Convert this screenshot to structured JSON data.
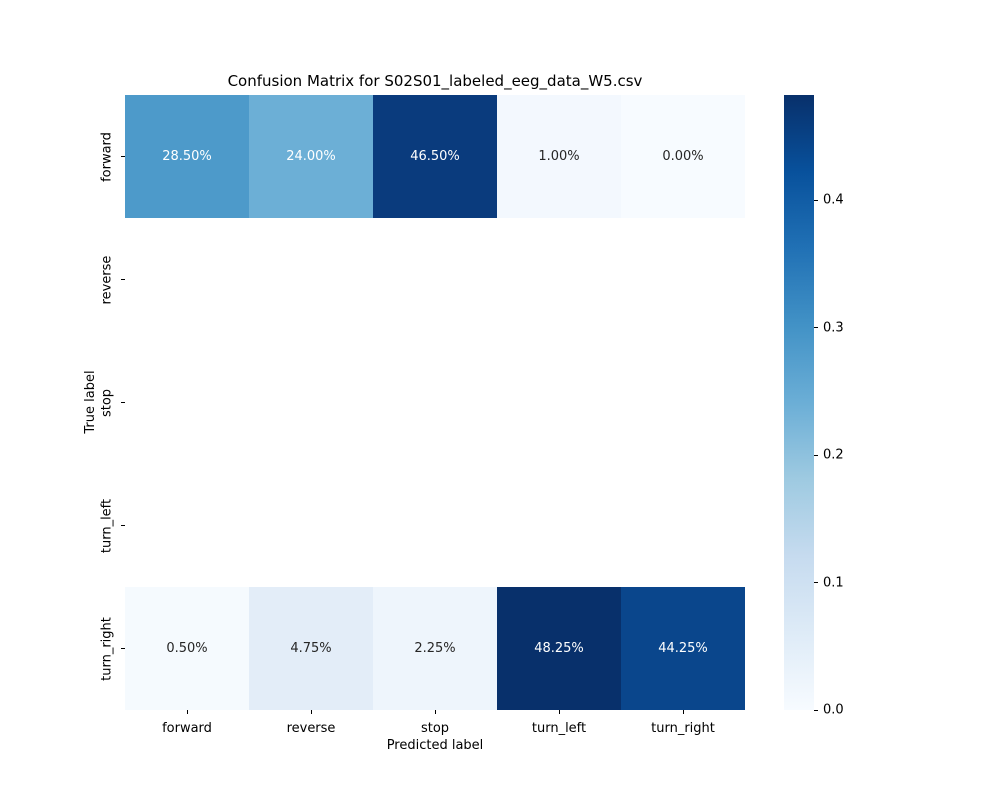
{
  "chart_data": {
    "type": "heatmap",
    "title": "Confusion Matrix for S02S01_labeled_eeg_data_W5.csv",
    "xlabel": "Predicted label",
    "ylabel": "True label",
    "x_categories": [
      "forward",
      "reverse",
      "stop",
      "turn_left",
      "turn_right"
    ],
    "y_categories": [
      "forward",
      "reverse",
      "stop",
      "turn_left",
      "turn_right"
    ],
    "values_fraction": [
      [
        0.285,
        0.24,
        0.465,
        0.01,
        0.0
      ],
      [
        null,
        null,
        null,
        null,
        null
      ],
      [
        null,
        null,
        null,
        null,
        null
      ],
      [
        null,
        null,
        null,
        null,
        null
      ],
      [
        0.005,
        0.0475,
        0.0225,
        0.4825,
        0.4425
      ]
    ],
    "rows": [
      {
        "label": "forward",
        "cells": [
          {
            "text": "28.50%",
            "bg": "#4d9aca",
            "fg": "#ffffff"
          },
          {
            "text": "24.00%",
            "bg": "#6cafd6",
            "fg": "#ffffff"
          },
          {
            "text": "46.50%",
            "bg": "#0a3b7d",
            "fg": "#ffffff"
          },
          {
            "text": "1.00%",
            "bg": "#f3f8fe",
            "fg": "#262626"
          },
          {
            "text": "0.00%",
            "bg": "#f7fbff",
            "fg": "#262626"
          }
        ]
      },
      {
        "label": "reverse",
        "cells": [
          null,
          null,
          null,
          null,
          null
        ]
      },
      {
        "label": "stop",
        "cells": [
          null,
          null,
          null,
          null,
          null
        ]
      },
      {
        "label": "turn_left",
        "cells": [
          null,
          null,
          null,
          null,
          null
        ]
      },
      {
        "label": "turn_right",
        "cells": [
          {
            "text": "0.50%",
            "bg": "#f5fafe",
            "fg": "#262626"
          },
          {
            "text": "4.75%",
            "bg": "#e3edf8",
            "fg": "#262626"
          },
          {
            "text": "2.25%",
            "bg": "#eef5fc",
            "fg": "#262626"
          },
          {
            "text": "48.25%",
            "bg": "#08306b",
            "fg": "#ffffff"
          },
          {
            "text": "44.25%",
            "bg": "#0a468c",
            "fg": "#ffffff"
          }
        ]
      }
    ],
    "colormap": "Blues",
    "colormap_gradient_bottom_to_top": [
      "#f7fbff",
      "#deebf7",
      "#c6dbef",
      "#9ecae1",
      "#6baed6",
      "#4292c6",
      "#2171b5",
      "#08519c",
      "#08306b"
    ],
    "colorbar": {
      "vmin": 0.0,
      "vmax": 0.4825,
      "ticks": [
        {
          "label": "0.0",
          "value": 0.0
        },
        {
          "label": "0.1",
          "value": 0.1
        },
        {
          "label": "0.2",
          "value": 0.2
        },
        {
          "label": "0.3",
          "value": 0.3
        },
        {
          "label": "0.4",
          "value": 0.4
        }
      ],
      "position": "right"
    },
    "grid": false,
    "legend": false
  }
}
